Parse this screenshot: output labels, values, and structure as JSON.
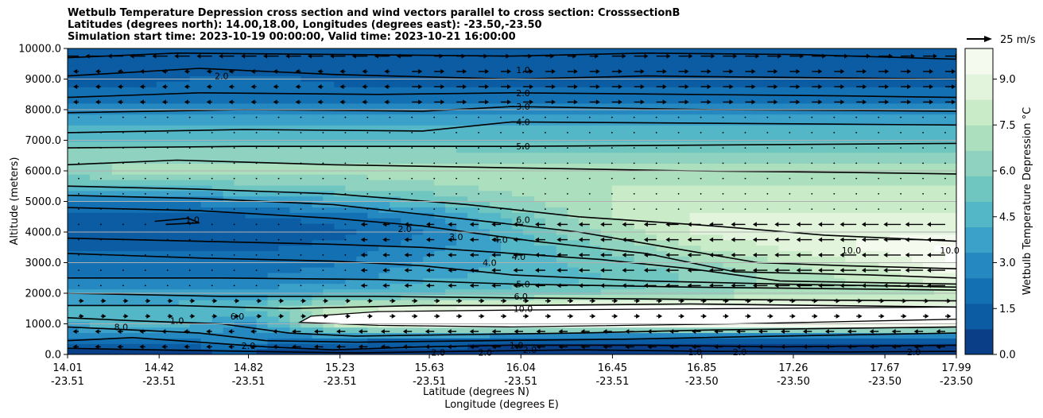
{
  "header": {
    "title_line1": "Wetbulb Temperature Depression cross section and wind vectors parallel to cross section: CrosssectionB",
    "title_line2": "Latitudes (degrees north): 14.00,18.00, Longitudes (degrees east): -23.50,-23.50",
    "title_line3": "Simulation start time: 2023-10-19 00:00:00, Valid time: 2023-10-21 16:00:00"
  },
  "chart_data": {
    "type": "heatmap",
    "ylabel": "Altitude (meters)",
    "xlabel_lat": "Latitude (degrees N)",
    "xlabel_lon": "Longitude (degrees E)",
    "ylim": [
      0,
      10000
    ],
    "y_ticks": [
      "0.0",
      "1000.0",
      "2000.0",
      "3000.0",
      "4000.0",
      "5000.0",
      "6000.0",
      "7000.0",
      "8000.0",
      "9000.0",
      "10000.0"
    ],
    "x_ticks": [
      {
        "lat": "14.01",
        "lon": "-23.51"
      },
      {
        "lat": "14.42",
        "lon": "-23.51"
      },
      {
        "lat": "14.82",
        "lon": "-23.51"
      },
      {
        "lat": "15.23",
        "lon": "-23.51"
      },
      {
        "lat": "15.63",
        "lon": "-23.51"
      },
      {
        "lat": "16.04",
        "lon": "-23.51"
      },
      {
        "lat": "16.45",
        "lon": "-23.51"
      },
      {
        "lat": "16.85",
        "lon": "-23.50"
      },
      {
        "lat": "17.26",
        "lon": "-23.50"
      },
      {
        "lat": "17.67",
        "lon": "-23.50"
      },
      {
        "lat": "17.99",
        "lon": "-23.50"
      }
    ],
    "xlim": [
      14.01,
      17.99
    ],
    "grid": "horizontal",
    "colorbar": {
      "label": "Wetbulb Temperature Depression °C",
      "range": [
        0,
        10
      ],
      "ticks": [
        "0.0",
        "1.5",
        "3.0",
        "4.5",
        "6.0",
        "7.5",
        "9.0"
      ],
      "colors": [
        "#0a3f88",
        "#0b5ca2",
        "#1370b3",
        "#2588c0",
        "#3ba1c9",
        "#54b7c8",
        "#6fc6c1",
        "#8ed2bf",
        "#acdfbd",
        "#c9ebc7",
        "#e2f4dc",
        "#f4fbee"
      ]
    },
    "wind_key": {
      "label": "25 m/s",
      "speed": 25
    },
    "field": {
      "lats": [
        14.01,
        14.42,
        14.82,
        15.23,
        15.63,
        16.04,
        16.45,
        16.85,
        17.26,
        17.67,
        17.99
      ],
      "heights": [
        0,
        500,
        1000,
        1500,
        2000,
        2500,
        3000,
        3500,
        4000,
        4500,
        5000,
        5500,
        6000,
        6500,
        7000,
        7500,
        8000,
        8500,
        9000,
        9500,
        10000
      ],
      "values": [
        [
          0.5,
          0.4,
          0.4,
          0.3,
          0.3,
          0.3,
          0.3,
          0.3,
          0.3,
          0.3,
          0.3
        ],
        [
          2.0,
          2.5,
          3.0,
          2.0,
          1.5,
          1.0,
          1.0,
          1.0,
          1.0,
          1.0,
          1.0
        ],
        [
          4.0,
          5.0,
          3.0,
          8.0,
          9.5,
          10.0,
          10.0,
          10.0,
          10.0,
          10.0,
          10.0
        ],
        [
          4.5,
          4.5,
          5.0,
          8.0,
          9.0,
          10.0,
          10.0,
          10.0,
          10.0,
          10.0,
          10.0
        ],
        [
          3.5,
          3.5,
          3.5,
          4.5,
          5.0,
          5.5,
          6.0,
          6.5,
          7.0,
          7.0,
          7.5
        ],
        [
          2.5,
          2.5,
          2.5,
          3.0,
          4.0,
          4.5,
          5.0,
          6.0,
          7.0,
          8.0,
          9.0
        ],
        [
          2.0,
          2.0,
          2.0,
          2.5,
          3.5,
          4.5,
          5.5,
          6.5,
          7.5,
          8.5,
          10.0
        ],
        [
          1.5,
          1.5,
          1.5,
          2.0,
          3.0,
          4.5,
          6.0,
          7.5,
          8.5,
          9.5,
          10.0
        ],
        [
          1.0,
          1.0,
          1.0,
          1.5,
          2.5,
          5.0,
          7.0,
          8.5,
          9.0,
          9.0,
          9.0
        ],
        [
          1.5,
          1.5,
          1.5,
          2.0,
          3.0,
          5.5,
          7.5,
          8.5,
          8.5,
          8.5,
          8.5
        ],
        [
          2.5,
          2.5,
          3.0,
          4.0,
          5.0,
          6.5,
          7.5,
          8.0,
          8.0,
          8.0,
          8.0
        ],
        [
          4.5,
          5.0,
          5.5,
          6.0,
          6.5,
          7.0,
          7.5,
          7.5,
          7.5,
          7.5,
          7.5
        ],
        [
          6.5,
          7.0,
          7.0,
          7.0,
          7.0,
          7.0,
          7.0,
          7.0,
          7.0,
          7.0,
          7.0
        ],
        [
          6.5,
          6.5,
          6.5,
          6.5,
          6.5,
          6.0,
          6.0,
          6.0,
          6.0,
          6.0,
          6.0
        ],
        [
          5.0,
          5.0,
          5.0,
          5.0,
          5.0,
          5.0,
          5.0,
          5.0,
          5.0,
          5.0,
          5.0
        ],
        [
          4.0,
          4.0,
          4.0,
          4.0,
          4.0,
          4.0,
          4.0,
          4.0,
          4.0,
          4.0,
          4.0
        ],
        [
          3.0,
          3.0,
          3.0,
          3.0,
          3.0,
          3.0,
          3.0,
          3.0,
          3.0,
          3.0,
          3.0
        ],
        [
          2.0,
          2.0,
          2.0,
          2.0,
          2.0,
          2.0,
          2.0,
          2.0,
          2.0,
          2.0,
          2.0
        ],
        [
          1.5,
          1.5,
          2.0,
          1.5,
          1.0,
          1.0,
          1.5,
          1.5,
          1.5,
          1.5,
          1.5
        ],
        [
          1.0,
          1.0,
          1.0,
          1.0,
          1.0,
          1.0,
          1.0,
          1.0,
          1.0,
          1.0,
          1.0
        ],
        [
          0.8,
          0.8,
          0.8,
          1.0,
          1.0,
          1.0,
          1.2,
          1.5,
          1.2,
          1.0,
          1.0
        ]
      ]
    },
    "contour_labels": [
      {
        "text": "2.0",
        "lat": 14.7,
        "h": 9100
      },
      {
        "text": "1.0",
        "lat": 16.05,
        "h": 9300
      },
      {
        "text": "2.0",
        "lat": 16.05,
        "h": 8550
      },
      {
        "text": "3.0",
        "lat": 16.05,
        "h": 8100
      },
      {
        "text": "4.0",
        "lat": 16.05,
        "h": 7600
      },
      {
        "text": "5.0",
        "lat": 16.05,
        "h": 6800
      },
      {
        "text": "6.0",
        "lat": 16.05,
        "h": 4400
      },
      {
        "text": "4.0",
        "lat": 15.95,
        "h": 3750
      },
      {
        "text": "4.0",
        "lat": 15.9,
        "h": 3000
      },
      {
        "text": "4.0",
        "lat": 16.03,
        "h": 3200
      },
      {
        "text": "3.0",
        "lat": 15.75,
        "h": 3850
      },
      {
        "text": "2.0",
        "lat": 15.52,
        "h": 4100
      },
      {
        "text": "1.0",
        "lat": 14.57,
        "h": 4400
      },
      {
        "text": "5.0",
        "lat": 16.05,
        "h": 2300
      },
      {
        "text": "6.0",
        "lat": 16.04,
        "h": 1900
      },
      {
        "text": "10.0",
        "lat": 16.05,
        "h": 1500
      },
      {
        "text": "10.0",
        "lat": 17.52,
        "h": 3400
      },
      {
        "text": "10.0",
        "lat": 17.96,
        "h": 3400
      },
      {
        "text": "8.0",
        "lat": 14.25,
        "h": 900
      },
      {
        "text": "1.0",
        "lat": 14.5,
        "h": 1100
      },
      {
        "text": "6.0",
        "lat": 14.77,
        "h": 1250
      },
      {
        "text": "2.0",
        "lat": 14.82,
        "h": 280
      },
      {
        "text": "2.0",
        "lat": 15.67,
        "h": 60
      },
      {
        "text": "2.0",
        "lat": 15.88,
        "h": 60
      },
      {
        "text": "1.0",
        "lat": 16.02,
        "h": 300
      },
      {
        "text": "2.0",
        "lat": 16.08,
        "h": 150
      },
      {
        "text": "1.0",
        "lat": 16.82,
        "h": 80
      },
      {
        "text": "2.0",
        "lat": 17.02,
        "h": 80
      },
      {
        "text": "2.0",
        "lat": 17.8,
        "h": 80
      }
    ]
  }
}
